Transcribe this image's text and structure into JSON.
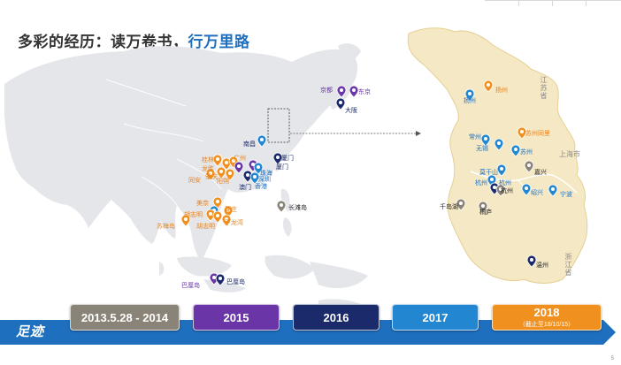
{
  "title": {
    "main": "多彩的经历：读万卷书，",
    "highlight": "行万里路"
  },
  "colors": {
    "orange": "#f0901e",
    "purple": "#6a35a6",
    "navy": "#1b2a6b",
    "blue": "#2386d0",
    "gray": "#8a8378",
    "timeline": "#1f6fbf",
    "province": "#f5e8c4"
  },
  "timeline": {
    "label": "足迹",
    "periods": [
      {
        "label": "2013.5.28 - 2014",
        "sub": ""
      },
      {
        "label": "2015",
        "sub": ""
      },
      {
        "label": "2016",
        "sub": ""
      },
      {
        "label": "2017",
        "sub": ""
      },
      {
        "label": "2018",
        "sub": "（截止至18/10/15）"
      }
    ]
  },
  "regions": {
    "jiangsu": "江苏省",
    "shanghai": "上海市",
    "zhejiang": "浙江省"
  },
  "places": {
    "jingdu": "京都",
    "dongjing": "东京",
    "daban": "大阪",
    "nanchang": "南昌",
    "guilin": "桂林",
    "longsheng": "龙胜",
    "guangzhou": "广州",
    "xiamen": "厦门",
    "zhuhai": "珠海",
    "shenzhen": "深圳",
    "aomen": "澳门",
    "xianggang": "香港",
    "zhaoqing": "肇庆",
    "yangshuo": "阳朔",
    "tongan": "同安",
    "meinai": "美奈",
    "yazhuang": "芽庄",
    "huzhiming": "胡志明",
    "xialonglu": "下龙湾",
    "sumei": "苏梅岛",
    "changtandao": "长滩岛",
    "balidao": "巴厘岛",
    "bali2": "巴厘岛",
    "yangzhou": "扬州",
    "yangzhou2": "扬州",
    "changzhou": "常州",
    "wuxi": "无锡",
    "suzhou": "苏州",
    "suzhou2": "苏州同里",
    "moganshan": "莫干山",
    "hangzhou": "杭州",
    "hangzhou2": "杭州",
    "jiaxing": "嘉兴",
    "shaoxing": "绍兴",
    "ningbo": "宁波",
    "qiandaohu": "千岛湖",
    "tonglu": "桐庐",
    "wenzhou": "温州"
  },
  "page_number": "5"
}
